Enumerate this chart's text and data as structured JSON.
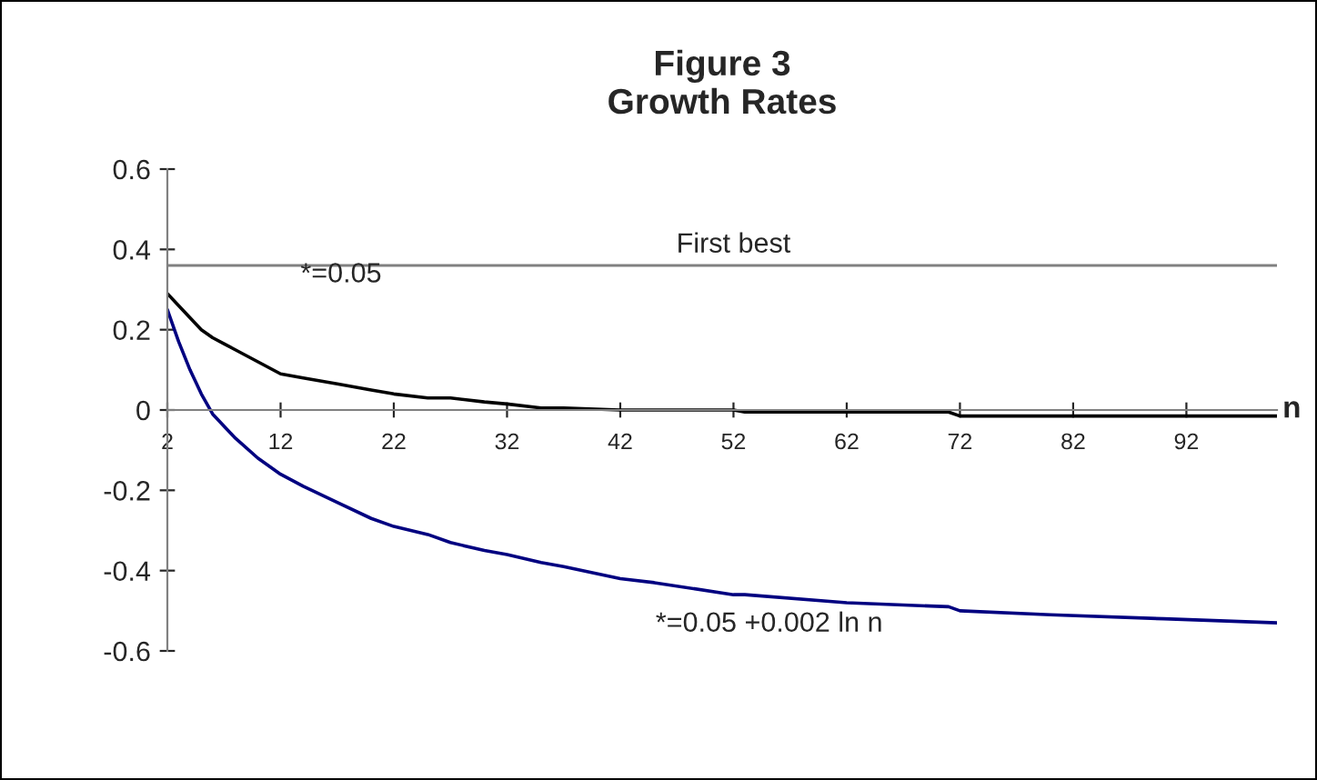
{
  "chart_data": {
    "type": "line",
    "title": "Figure 3\nGrowth Rates",
    "xlabel": "n",
    "x": [
      2,
      3,
      4,
      5,
      6,
      7,
      8,
      10,
      12,
      14,
      17,
      20,
      22,
      25,
      27,
      30,
      32,
      35,
      37,
      42,
      45,
      52,
      53,
      62,
      71,
      72,
      80,
      90,
      100
    ],
    "series": [
      {
        "color": "#000000",
        "values": [
          0.29,
          0.26,
          0.23,
          0.2,
          0.18,
          0.165,
          0.15,
          0.12,
          0.09,
          0.08,
          0.065,
          0.05,
          0.04,
          0.03,
          0.03,
          0.02,
          0.015,
          0.005,
          0.005,
          0.0,
          0.0,
          0.0,
          -0.005,
          -0.005,
          -0.005,
          -0.015,
          -0.015,
          -0.015,
          -0.015
        ]
      },
      {
        "color": "#000080",
        "values": [
          0.25,
          0.17,
          0.1,
          0.04,
          -0.01,
          -0.04,
          -0.07,
          -0.12,
          -0.16,
          -0.19,
          -0.23,
          -0.27,
          -0.29,
          -0.31,
          -0.33,
          -0.35,
          -0.36,
          -0.38,
          -0.39,
          -0.42,
          -0.43,
          -0.46,
          -0.46,
          -0.48,
          -0.49,
          -0.5,
          -0.51,
          -0.52,
          -0.53
        ]
      }
    ],
    "xlim": [
      2,
      100
    ],
    "xticks": [
      2,
      12,
      22,
      32,
      42,
      52,
      62,
      72,
      82,
      92
    ],
    "ylim": [
      -0.6,
      0.6
    ],
    "yticks": [
      -0.6,
      -0.4,
      -0.2,
      0,
      0.2,
      0.4,
      0.6
    ],
    "ref_lines": [
      {
        "axis": "y",
        "value": 0.36,
        "color": "#808080"
      }
    ],
    "annotations": [
      {
        "text": "First best",
        "x": 52,
        "y": 0.36
      },
      "*=0.05",
      "*=0.05 +0.002 ln n"
    ],
    "grid": false,
    "legend": false,
    "marker": "none",
    "line_style": "solid"
  }
}
